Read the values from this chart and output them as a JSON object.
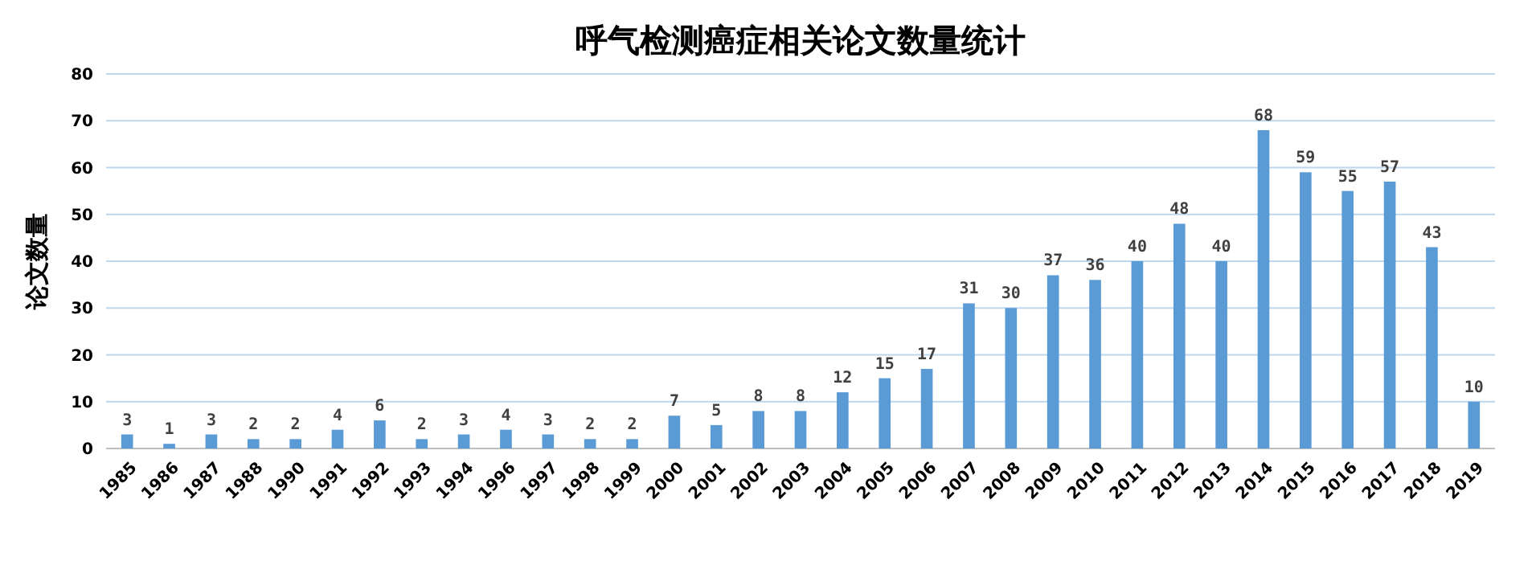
{
  "chart_data": {
    "type": "bar",
    "title": "呼气检测癌症相关论文数量统计",
    "ylabel": "论文数量",
    "categories": [
      "1985",
      "1986",
      "1987",
      "1988",
      "1990",
      "1991",
      "1992",
      "1993",
      "1994",
      "1996",
      "1997",
      "1998",
      "1999",
      "2000",
      "2001",
      "2002",
      "2003",
      "2004",
      "2005",
      "2006",
      "2007",
      "2008",
      "2009",
      "2010",
      "2011",
      "2012",
      "2013",
      "2014",
      "2015",
      "2016",
      "2017",
      "2018",
      "2019"
    ],
    "values": [
      3,
      1,
      3,
      2,
      2,
      4,
      6,
      2,
      3,
      4,
      3,
      2,
      2,
      7,
      5,
      8,
      8,
      12,
      15,
      17,
      31,
      30,
      37,
      36,
      40,
      48,
      40,
      68,
      59,
      55,
      57,
      43,
      10
    ],
    "color": "#5b9bd5",
    "ylim": [
      0,
      80
    ],
    "yticks": [
      0,
      10,
      20,
      30,
      40,
      50,
      60,
      70,
      80
    ],
    "grid": "y",
    "data_labels": true
  }
}
